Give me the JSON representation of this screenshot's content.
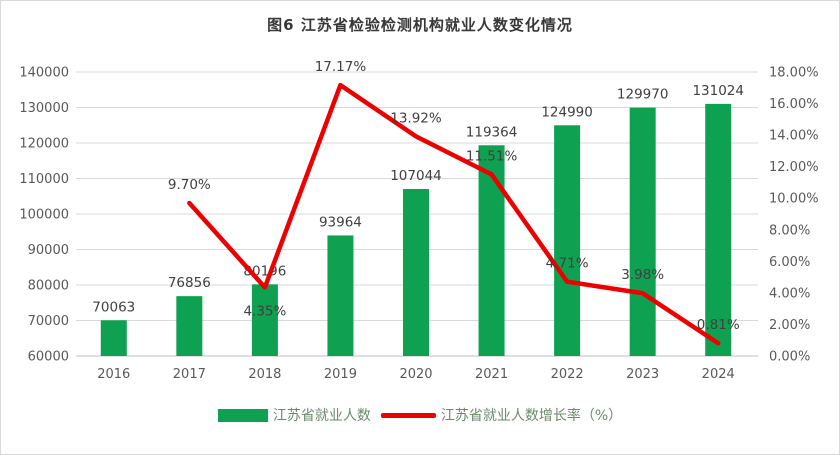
{
  "chart_data": {
    "type": "combo",
    "title": "图6  江苏省检验检测机构就业人数变化情况",
    "categories": [
      "2016",
      "2017",
      "2018",
      "2019",
      "2020",
      "2021",
      "2022",
      "2023",
      "2024"
    ],
    "series": [
      {
        "name": "江苏省就业人数",
        "type": "bar",
        "axis": "left",
        "color": "#0EA151",
        "values": [
          70063,
          76856,
          80196,
          93964,
          107044,
          119364,
          124990,
          129970,
          131024
        ]
      },
      {
        "name": "江苏省就业人数增长率（%）",
        "type": "line",
        "axis": "right",
        "color": "#EC0000",
        "values": [
          null,
          9.7,
          4.35,
          17.17,
          13.92,
          11.51,
          4.71,
          3.98,
          0.81
        ],
        "labels": [
          null,
          "9.70%",
          "4.35%",
          "17.17%",
          "13.92%",
          "11.51%",
          "4.71%",
          "3.98%",
          "0.81%"
        ],
        "label_side": [
          null,
          "above",
          "below",
          "above",
          "above",
          "above",
          "above",
          "above",
          "above"
        ]
      }
    ],
    "left_axis": {
      "min": 60000,
      "max": 140000,
      "step": 10000
    },
    "right_axis": {
      "min": 0,
      "max": 18,
      "step": 2,
      "suffix": "%"
    },
    "grid": true,
    "legend_position": "bottom",
    "colors": {
      "grid_line": "#D9D9D9",
      "axis_line": "#BFBFBF",
      "axis_text": "#595959",
      "data_label_text": "#404040",
      "legend_text": "#6A8A6A",
      "title_text": "#383838"
    }
  }
}
